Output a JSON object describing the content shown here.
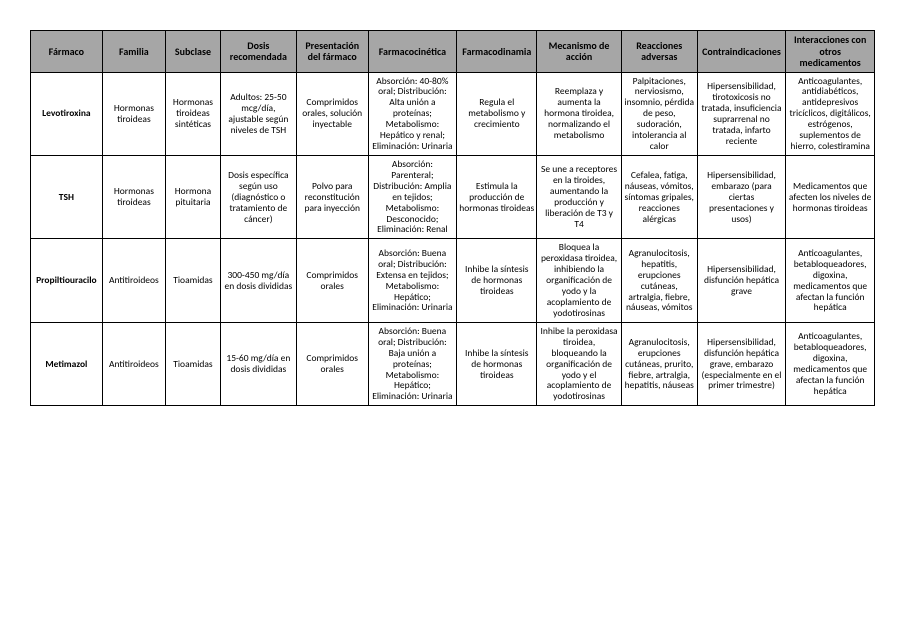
{
  "table": {
    "background_color": "#ffffff",
    "header_bg": "#a6a6a6",
    "border_color": "#000000",
    "font_family": "Calibri",
    "header_fontsize": 10,
    "cell_fontsize": 9.5,
    "columns": [
      "Fármaco",
      "Familia",
      "Subclase",
      "Dosis recomendada",
      "Presentación del fármaco",
      "Farmacocinética",
      "Farmacodinamia",
      "Mecanismo de acción",
      "Reacciones adversas",
      "Contraindicaciones",
      "Interacciones con otros medicamentos"
    ],
    "rows": [
      {
        "farmaco": "Levotiroxina",
        "familia": "Hormonas tiroideas",
        "subclase": "Hormonas tiroideas sintéticas",
        "dosis": "Adultos: 25-50 mcg/día, ajustable según niveles de TSH",
        "presentacion": "Comprimidos orales, solución inyectable",
        "farmacocinetica": "Absorción: 40-80% oral; Distribución: Alta unión a proteínas; Metabolismo: Hepático y renal; Eliminación: Urinaria",
        "farmacodinamia": "Regula el metabolismo y crecimiento",
        "mecanismo": "Reemplaza y aumenta la hormona tiroidea, normalizando el metabolismo",
        "reacciones": "Palpitaciones, nerviosismo, insomnio, pérdida de peso, sudoración, intolerancia al calor",
        "contraindicaciones": "Hipersensibilidad, tirotoxicosis no tratada, insuficiencia suprarrenal no tratada, infarto reciente",
        "interacciones": "Anticoagulantes, antidiabéticos, antidepresivos tricíclicos, digitálicos, estrógenos, suplementos de hierro, colestiramina"
      },
      {
        "farmaco": "TSH",
        "familia": "Hormonas tiroideas",
        "subclase": "Hormona pituitaria",
        "dosis": "Dosis específica según uso (diagnóstico o tratamiento de cáncer)",
        "presentacion": "Polvo para reconstitución para inyección",
        "farmacocinetica": "Absorción: Parenteral; Distribución: Amplia en tejidos; Metabolismo: Desconocido; Eliminación: Renal",
        "farmacodinamia": "Estimula la producción de hormonas tiroideas",
        "mecanismo": "Se une a receptores en la tiroides, aumentando la producción y liberación de T3 y T4",
        "reacciones": "Cefalea, fatiga, náuseas, vómitos, síntomas gripales, reacciones alérgicas",
        "contraindicaciones": "Hipersensibilidad, embarazo (para ciertas presentaciones y usos)",
        "interacciones": "Medicamentos que afecten los niveles de hormonas tiroideas"
      },
      {
        "farmaco": "Propiltiouracilo",
        "familia": "Antitiroideos",
        "subclase": "Tioamidas",
        "dosis": "300-450 mg/día en dosis divididas",
        "presentacion": "Comprimidos orales",
        "farmacocinetica": "Absorción: Buena oral; Distribución: Extensa en tejidos; Metabolismo: Hepático; Eliminación: Urinaria",
        "farmacodinamia": "Inhibe la síntesis de hormonas tiroideas",
        "mecanismo": "Bloquea la peroxidasa tiroidea, inhibiendo la organificación de yodo y la acoplamiento de yodotirosinas",
        "reacciones": "Agranulocitosis, hepatitis, erupciones cutáneas, artralgia, fiebre, náuseas, vómitos",
        "contraindicaciones": "Hipersensibilidad, disfunción hepática grave",
        "interacciones": "Anticoagulantes, betabloqueadores, digoxina, medicamentos que afectan la función hepática"
      },
      {
        "farmaco": "Metimazol",
        "familia": "Antitiroideos",
        "subclase": "Tioamidas",
        "dosis": "15-60 mg/día en dosis divididas",
        "presentacion": "Comprimidos orales",
        "farmacocinetica": "Absorción: Buena oral; Distribución: Baja unión a proteínas; Metabolismo: Hepático; Eliminación: Urinaria",
        "farmacodinamia": "Inhibe la síntesis de hormonas tiroideas",
        "mecanismo": "Inhibe la peroxidasa tiroidea, bloqueando la organificación de yodo y el acoplamiento de yodotirosinas",
        "reacciones": "Agranulocitosis, erupciones cutáneas, prurito, fiebre, artralgia, hepatitis, náuseas",
        "contraindicaciones": "Hipersensibilidad, disfunción hepática grave, embarazo (especialmente en el primer trimestre)",
        "interacciones": "Anticoagulantes, betabloqueadores, digoxina, medicamentos que afectan la función hepática"
      }
    ]
  }
}
